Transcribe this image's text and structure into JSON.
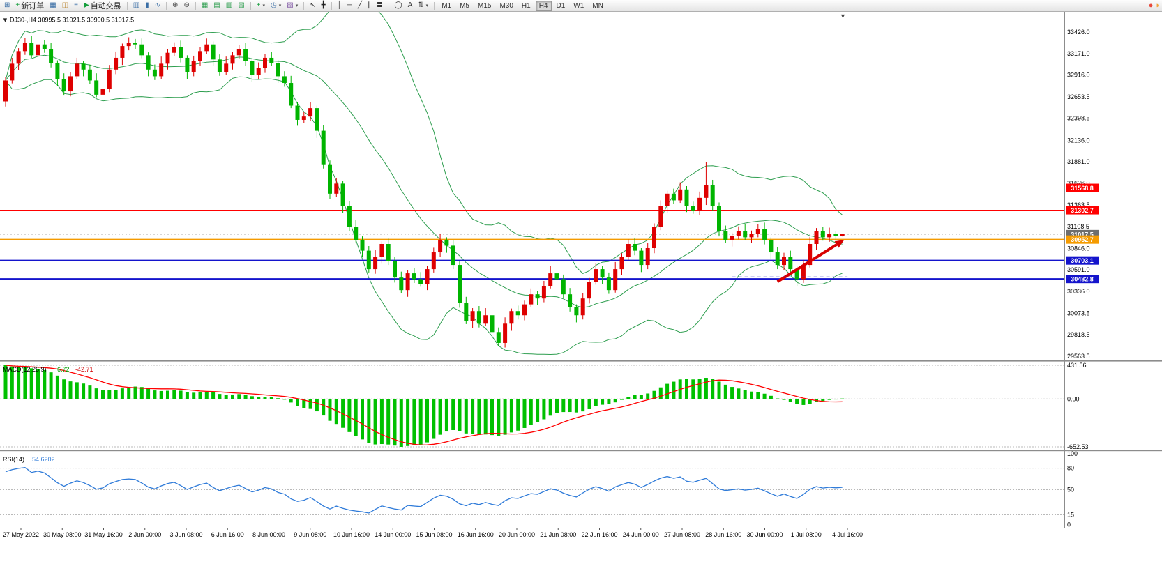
{
  "icons": {
    "one_click_toggle": "▼",
    "chart_shift_marker": "▼"
  },
  "chart_header": {
    "info": "DJ30-,H4 30995.5 31021.5 30990.5 31017.5"
  },
  "toolbar": {
    "caret_glyph": "▾",
    "groups": [
      {
        "items": [
          {
            "name": "terminal-window-icon",
            "glyph": "⊞",
            "color": "#3A6EA5"
          },
          {
            "name": "new-order-button",
            "glyph": "+",
            "color": "#159E3C",
            "label": "新订单"
          },
          {
            "name": "market-watch-icon",
            "glyph": "▦",
            "color": "#3A6EA5"
          },
          {
            "name": "data-window-icon",
            "glyph": "◫",
            "color": "#B9822B"
          },
          {
            "name": "navigator-icon",
            "glyph": "≡",
            "color": "#3A6EA5"
          },
          {
            "name": "autotrade-button",
            "glyph": "▶",
            "color": "#159E3C",
            "label": "自动交易"
          }
        ]
      },
      {
        "items": [
          {
            "name": "bar-chart-type-icon",
            "glyph": "▥",
            "color": "#3A6EA5"
          },
          {
            "name": "candlestick-type-icon",
            "glyph": "▮",
            "color": "#3A6EA5"
          },
          {
            "name": "line-chart-type-icon",
            "glyph": "∿",
            "color": "#3A6EA5"
          }
        ]
      },
      {
        "items": [
          {
            "name": "zoom-in-icon",
            "glyph": "⊕",
            "color": "#444444"
          },
          {
            "name": "zoom-out-icon",
            "glyph": "⊖",
            "color": "#444444"
          }
        ]
      },
      {
        "items": [
          {
            "name": "tile-windows-icon",
            "glyph": "▦",
            "color": "#2E9E4F"
          },
          {
            "name": "tile-horizontal-icon",
            "glyph": "▤",
            "color": "#2E9E4F"
          },
          {
            "name": "tile-vertical-icon",
            "glyph": "▥",
            "color": "#2E9E4F"
          },
          {
            "name": "cascade-windows-icon",
            "glyph": "▧",
            "color": "#2E9E4F"
          }
        ]
      },
      {
        "items": [
          {
            "name": "indicators-menu-button",
            "glyph": "+",
            "color": "#159E3C",
            "caret": true
          },
          {
            "name": "periods-menu-button",
            "glyph": "◷",
            "color": "#3A6EA5",
            "caret": true
          },
          {
            "name": "templates-menu-button",
            "glyph": "▨",
            "color": "#7A4FA0",
            "caret": true
          }
        ]
      },
      {
        "items": [
          {
            "name": "cursor-tool-icon",
            "glyph": "↖",
            "color": "#222222"
          },
          {
            "name": "crosshair-tool-icon",
            "glyph": "╋",
            "color": "#222222"
          }
        ]
      },
      {
        "items": [
          {
            "name": "vertical-line-tool-icon",
            "glyph": "│",
            "color": "#333333"
          },
          {
            "name": "horizontal-line-tool-icon",
            "glyph": "─",
            "color": "#333333"
          },
          {
            "name": "trendline-tool-icon",
            "glyph": "╱",
            "color": "#333333"
          },
          {
            "name": "channel-tool-icon",
            "glyph": "∥",
            "color": "#333333"
          },
          {
            "name": "fibonacci-tool-icon",
            "glyph": "≣",
            "color": "#333333"
          }
        ]
      },
      {
        "items": [
          {
            "name": "ellipse-tool-icon",
            "glyph": "◯",
            "color": "#333333"
          },
          {
            "name": "text-tool-icon",
            "glyph": "A",
            "color": "#333333"
          },
          {
            "name": "arrows-tool-icon",
            "glyph": "⇅",
            "color": "#333333",
            "caret": true
          }
        ]
      }
    ],
    "timeframes": [
      "M1",
      "M5",
      "M15",
      "M30",
      "H1",
      "H4",
      "D1",
      "W1",
      "MN"
    ],
    "active_timeframe": "H4",
    "right_icons": [
      {
        "name": "notifications-icon",
        "glyph": "●",
        "color": "#E84A3C"
      },
      {
        "name": "community-icon",
        "glyph": "◗",
        "color": "#F2A33C"
      }
    ]
  },
  "price_axis": {
    "labels": [
      "33426.0",
      "33171.0",
      "32916.0",
      "32653.5",
      "32398.5",
      "32136.0",
      "31881.0",
      "31626.0",
      "31363.5",
      "31108.5",
      "30846.0",
      "30591.0",
      "30336.0",
      "30073.5",
      "29818.5",
      "29563.5"
    ],
    "current_price_label": "31017.5"
  },
  "time_axis": {
    "labels": [
      "27 May 2022",
      "30 May 08:00",
      "31 May 16:00",
      "2 Jun 00:00",
      "3 Jun 08:00",
      "6 Jun 16:00",
      "8 Jun 00:00",
      "9 Jun 08:00",
      "10 Jun 16:00",
      "14 Jun 00:00",
      "15 Jun 08:00",
      "16 Jun 16:00",
      "20 Jun 00:00",
      "21 Jun 08:00",
      "22 Jun 16:00",
      "24 Jun 00:00",
      "27 Jun 08:00",
      "28 Jun 16:00",
      "30 Jun 00:00",
      "1 Jul 08:00",
      "4 Jul 16:00"
    ]
  },
  "chart_data": {
    "type": "candlestick",
    "symbol": "DJ30-",
    "timeframe": "H4",
    "last_ohlc": {
      "open": 30995.5,
      "high": 31021.5,
      "low": 30990.5,
      "close": 31017.5
    },
    "y_range": [
      29520,
      33610
    ],
    "candle_colors": {
      "up": "#DE0000",
      "down": "#00B400"
    },
    "bollinger": {
      "period": 20,
      "deviation": 2,
      "color": "#2E9E4F"
    },
    "current_price": 31017.5,
    "levels": [
      {
        "price": 31568.8,
        "label": "31568.8",
        "color": "#FF0000",
        "line_width": 1
      },
      {
        "price": 31302.7,
        "label": "31302.7",
        "color": "#FF0000",
        "line_width": 1
      },
      {
        "price": 30952.7,
        "label": "30952.7",
        "color": "#F59B00",
        "line_width": 2
      },
      {
        "price": 30703.1,
        "label": "30703.1",
        "color": "#1414CC",
        "line_width": 2
      },
      {
        "price": 30482.8,
        "label": "30482.8",
        "color": "#1414CC",
        "line_width": 2
      }
    ],
    "annotations": {
      "trend_arrow": {
        "from_bar": 119,
        "from_price": 30450,
        "to_bar": 129.3,
        "to_price": 30950,
        "color": "#D80000",
        "width": 4
      },
      "dashed_segment": {
        "from_bar": 112,
        "to_bar": 129.8,
        "price": 30507,
        "color": "#3A3AD0"
      }
    },
    "macd": {
      "label": "MACD(12,26,9)",
      "main_value": "6.72",
      "signal_value": "-42.71",
      "axis_labels": [
        "431.56",
        "0.00",
        "-652.53"
      ],
      "histogram_color": "#00C000",
      "signal_color": "#FF0000",
      "params": {
        "fast": 12,
        "slow": 26,
        "signal": 9
      }
    },
    "rsi": {
      "label": "RSI(14)",
      "value": "54.6202",
      "period": 14,
      "axis_labels": [
        "100",
        "80",
        "50",
        "15",
        "0"
      ],
      "level_lines": [
        80,
        50,
        15
      ],
      "line_color": "#2F7BD9"
    },
    "candles": [
      [
        32600,
        32895,
        32540,
        32850
      ],
      [
        32850,
        33120,
        32815,
        33050
      ],
      [
        33050,
        33235,
        32970,
        33200
      ],
      [
        33200,
        33360,
        33155,
        33300
      ],
      [
        33300,
        33385,
        33120,
        33150
      ],
      [
        33150,
        33320,
        33080,
        33280
      ],
      [
        33280,
        33335,
        33180,
        33220
      ],
      [
        33220,
        33295,
        33005,
        33060
      ],
      [
        33060,
        33090,
        32785,
        32870
      ],
      [
        32870,
        32935,
        32670,
        32720
      ],
      [
        32720,
        32945,
        32660,
        32900
      ],
      [
        32900,
        33120,
        32865,
        33050
      ],
      [
        33050,
        33085,
        32900,
        32980
      ],
      [
        32980,
        33040,
        32805,
        32850
      ],
      [
        32850,
        32935,
        32650,
        32680
      ],
      [
        32680,
        32790,
        32610,
        32750
      ],
      [
        32750,
        33035,
        32710,
        32980
      ],
      [
        32980,
        33195,
        32925,
        33120
      ],
      [
        33120,
        33290,
        33035,
        33260
      ],
      [
        33260,
        33365,
        33210,
        33300
      ],
      [
        33300,
        33345,
        33220,
        33280
      ],
      [
        33280,
        33350,
        33115,
        33150
      ],
      [
        33150,
        33185,
        32900,
        32980
      ],
      [
        32980,
        33040,
        32855,
        32900
      ],
      [
        32900,
        33135,
        32870,
        33050
      ],
      [
        33050,
        33220,
        32980,
        33180
      ],
      [
        33180,
        33305,
        33140,
        33250
      ],
      [
        33250,
        33325,
        33065,
        33120
      ],
      [
        33120,
        33150,
        32865,
        32950
      ],
      [
        32950,
        33145,
        32900,
        33080
      ],
      [
        33080,
        33245,
        33020,
        33200
      ],
      [
        33200,
        33350,
        33165,
        33280
      ],
      [
        33280,
        33315,
        33020,
        33100
      ],
      [
        33100,
        33160,
        32905,
        32950
      ],
      [
        32950,
        33135,
        32920,
        33050
      ],
      [
        33050,
        33190,
        32980,
        33150
      ],
      [
        33150,
        33275,
        33110,
        33220
      ],
      [
        33220,
        33295,
        33025,
        33080
      ],
      [
        33080,
        33110,
        32835,
        32920
      ],
      [
        32920,
        33065,
        32870,
        33000
      ],
      [
        33000,
        33165,
        32940,
        33120
      ],
      [
        33120,
        33190,
        33025,
        33060
      ],
      [
        33060,
        33095,
        32820,
        32900
      ],
      [
        32900,
        32960,
        32775,
        32820
      ],
      [
        32820,
        32905,
        32520,
        32550
      ],
      [
        32550,
        32590,
        32310,
        32380
      ],
      [
        32380,
        32475,
        32340,
        32420
      ],
      [
        32420,
        32595,
        32365,
        32520
      ],
      [
        32520,
        32550,
        32165,
        32250
      ],
      [
        32250,
        32315,
        31800,
        31850
      ],
      [
        31850,
        31895,
        31440,
        31500
      ],
      [
        31500,
        31690,
        31465,
        31620
      ],
      [
        31620,
        31655,
        31270,
        31350
      ],
      [
        31350,
        31410,
        31055,
        31100
      ],
      [
        31100,
        31185,
        30920,
        30950
      ],
      [
        30950,
        30990,
        30750,
        30820
      ],
      [
        30820,
        30875,
        30560,
        30600
      ],
      [
        30600,
        30825,
        30545,
        30750
      ],
      [
        30750,
        30930,
        30665,
        30900
      ],
      [
        30900,
        30965,
        30650,
        30700
      ],
      [
        30700,
        30745,
        30440,
        30500
      ],
      [
        30500,
        30570,
        30315,
        30350
      ],
      [
        30350,
        30585,
        30270,
        30550
      ],
      [
        30550,
        30610,
        30435,
        30480
      ],
      [
        30480,
        30565,
        30390,
        30420
      ],
      [
        30420,
        30640,
        30350,
        30600
      ],
      [
        30600,
        30855,
        30560,
        30800
      ],
      [
        30800,
        31025,
        30745,
        30950
      ],
      [
        30950,
        30980,
        30795,
        30880
      ],
      [
        30880,
        30945,
        30600,
        30650
      ],
      [
        30650,
        30695,
        30140,
        30200
      ],
      [
        30200,
        30270,
        29945,
        29980
      ],
      [
        29980,
        30135,
        29900,
        30100
      ],
      [
        30100,
        30160,
        29905,
        29950
      ],
      [
        29950,
        30135,
        29920,
        30050
      ],
      [
        30050,
        30090,
        29780,
        29850
      ],
      [
        29850,
        29905,
        29680,
        29720
      ],
      [
        29720,
        30025,
        29665,
        29950
      ],
      [
        29950,
        30130,
        29865,
        30100
      ],
      [
        30100,
        30165,
        30000,
        30050
      ],
      [
        30050,
        30225,
        29990,
        30180
      ],
      [
        30180,
        30370,
        30145,
        30300
      ],
      [
        30300,
        30335,
        30170,
        30250
      ],
      [
        30250,
        30460,
        30205,
        30400
      ],
      [
        30400,
        30635,
        30370,
        30550
      ],
      [
        30550,
        30590,
        30410,
        30480
      ],
      [
        30480,
        30535,
        30260,
        30300
      ],
      [
        30300,
        30375,
        30095,
        30150
      ],
      [
        30150,
        30180,
        29965,
        30050
      ],
      [
        30050,
        30315,
        30000,
        30250
      ],
      [
        30250,
        30495,
        30190,
        30450
      ],
      [
        30450,
        30670,
        30415,
        30600
      ],
      [
        30600,
        30635,
        30420,
        30500
      ],
      [
        30500,
        30560,
        30305,
        30350
      ],
      [
        30350,
        30685,
        30320,
        30600
      ],
      [
        30600,
        30790,
        30530,
        30750
      ],
      [
        30750,
        30955,
        30710,
        30900
      ],
      [
        30900,
        30975,
        30765,
        30820
      ],
      [
        30820,
        30850,
        30565,
        30650
      ],
      [
        30650,
        30915,
        30600,
        30850
      ],
      [
        30850,
        31145,
        30790,
        31100
      ],
      [
        31100,
        31420,
        31065,
        31350
      ],
      [
        31350,
        31535,
        31270,
        31500
      ],
      [
        31500,
        31560,
        31375,
        31420
      ],
      [
        31420,
        31635,
        31390,
        31550
      ],
      [
        31550,
        31590,
        31280,
        31350
      ],
      [
        31350,
        31405,
        31260,
        31300
      ],
      [
        31300,
        31525,
        31245,
        31450
      ],
      [
        31450,
        31880,
        31365,
        31600
      ],
      [
        31600,
        31665,
        31300,
        31350
      ],
      [
        31350,
        31395,
        30990,
        31050
      ],
      [
        31050,
        31120,
        30915,
        30950
      ],
      [
        30950,
        31035,
        30870,
        31000
      ],
      [
        31000,
        31110,
        30955,
        31050
      ],
      [
        31050,
        31135,
        30950,
        30980
      ],
      [
        30980,
        31060,
        30910,
        31020
      ],
      [
        31020,
        31135,
        30980,
        31080
      ],
      [
        31080,
        31155,
        30895,
        30950
      ],
      [
        30950,
        30980,
        30715,
        30800
      ],
      [
        30800,
        30865,
        30600,
        30650
      ],
      [
        30650,
        30795,
        30590,
        30750
      ],
      [
        30750,
        30820,
        30565,
        30600
      ],
      [
        30600,
        30635,
        30400,
        30480
      ],
      [
        30480,
        30710,
        30435,
        30650
      ],
      [
        30650,
        30985,
        30620,
        30900
      ],
      [
        30900,
        31090,
        30830,
        31050
      ],
      [
        31050,
        31105,
        30940,
        30980
      ],
      [
        30980,
        31095,
        30925,
        31020
      ],
      [
        31020,
        31050,
        30910,
        30995
      ],
      [
        30995.5,
        31021.5,
        30990.5,
        31017.5
      ]
    ]
  }
}
